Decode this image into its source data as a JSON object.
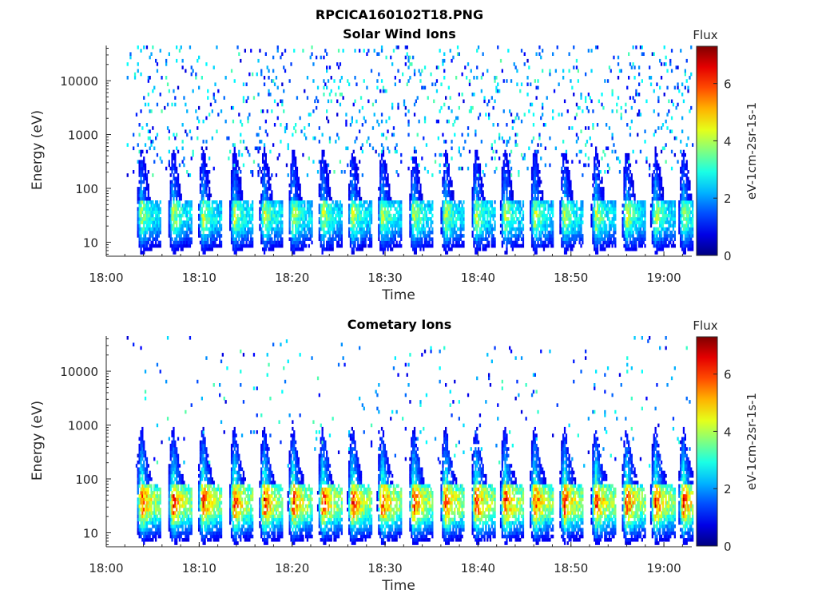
{
  "figure_title": "RPCICA160102T18.PNG",
  "colormap": "jet",
  "colors": {
    "background": "#ffffff",
    "axis": "#262626"
  },
  "chart_data": [
    {
      "type": "heatmap",
      "title": "Solar Wind Ions",
      "xlabel": "Time",
      "ylabel": "Energy (eV)",
      "xlim": [
        "18:00",
        "19:03"
      ],
      "xticks": [
        "18:00",
        "18:10",
        "18:20",
        "18:30",
        "18:40",
        "18:50",
        "19:00"
      ],
      "ylim": [
        5.5,
        45000
      ],
      "yscale": "log",
      "yticks": [
        "10",
        "100",
        "1000",
        "10000"
      ],
      "colorbar": {
        "title": "Flux",
        "label": "eV-1cm-2sr-1s-1",
        "range": [
          0,
          7.3
        ],
        "ticks": [
          "0",
          "2",
          "4",
          "6"
        ]
      },
      "bursts_minutes": [
        3.7,
        7.1,
        10.3,
        13.7,
        16.9,
        20.0,
        23.2,
        26.4,
        29.6,
        33.0,
        36.4,
        39.7,
        42.8,
        46.0,
        49.2,
        52.6,
        55.9,
        59.0,
        62.0
      ],
      "peak_flux": 4.6,
      "base_energy_eV": 30
    },
    {
      "type": "heatmap",
      "title": "Cometary Ions",
      "xlabel": "Time",
      "ylabel": "Energy (eV)",
      "xlim": [
        "18:00",
        "19:03"
      ],
      "xticks": [
        "18:00",
        "18:10",
        "18:20",
        "18:30",
        "18:40",
        "18:50",
        "19:00"
      ],
      "ylim": [
        5.5,
        45000
      ],
      "yscale": "log",
      "yticks": [
        "10",
        "100",
        "1000",
        "10000"
      ],
      "colorbar": {
        "title": "Flux",
        "label": "eV-1cm-2sr-1s-1",
        "range": [
          0,
          7.3
        ],
        "ticks": [
          "0",
          "2",
          "4",
          "6"
        ]
      },
      "bursts_minutes": [
        3.7,
        7.1,
        10.3,
        13.7,
        16.9,
        20.0,
        23.2,
        26.4,
        29.6,
        33.0,
        36.4,
        39.7,
        42.8,
        46.0,
        49.2,
        52.6,
        55.9,
        59.0,
        62.0
      ],
      "peak_flux": 6.8,
      "base_energy_eV": 35
    }
  ]
}
